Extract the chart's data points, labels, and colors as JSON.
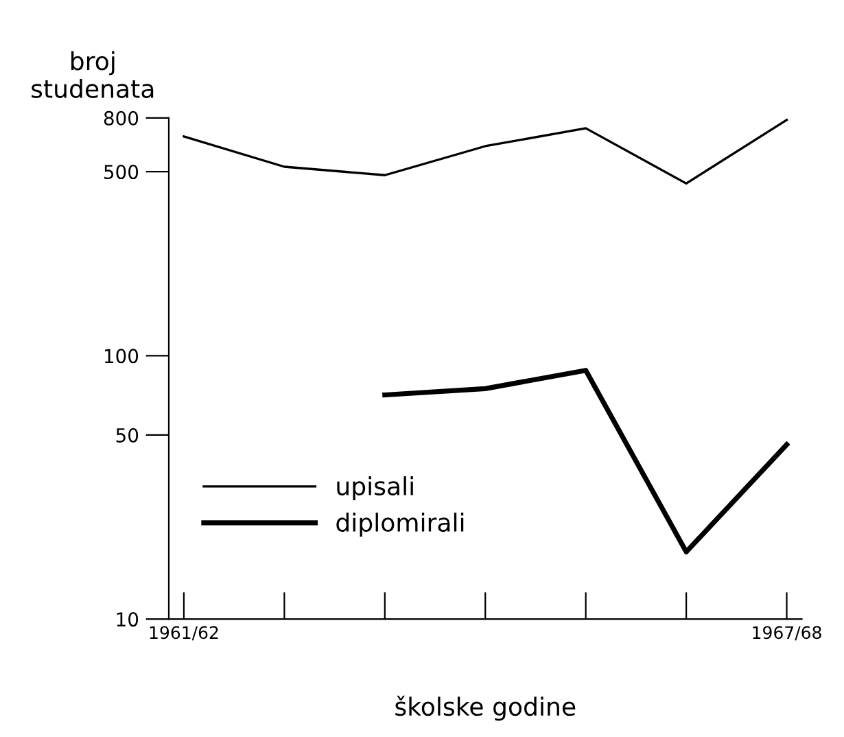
{
  "chart_data": {
    "type": "line",
    "xlabel": "školske godine",
    "ylabel": "broj\nstudenata",
    "categories": [
      "1961/62",
      null,
      null,
      null,
      null,
      null,
      "1967/68"
    ],
    "series": [
      {
        "name": "upisali",
        "color": "#000000",
        "values": [
          680,
          522,
          485,
          625,
          731,
          451,
          786
        ]
      },
      {
        "name": "diplomirali",
        "color": "#000000",
        "values": [
          null,
          null,
          71,
          75,
          88,
          18,
          46
        ]
      }
    ],
    "log": true,
    "ylim": [
      10,
      800
    ],
    "yticks": [
      10,
      50,
      100,
      500,
      800
    ],
    "grid": false,
    "legend": "bottom left",
    "marker": "none",
    "line_style": "solid"
  }
}
